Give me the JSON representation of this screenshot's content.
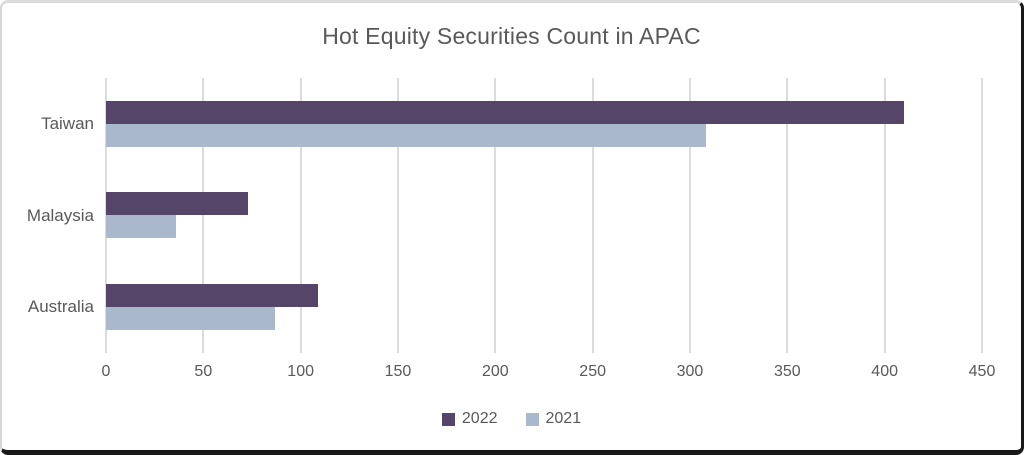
{
  "chart_data": {
    "type": "bar",
    "orientation": "horizontal",
    "title": "Hot Equity Securities Count in APAC",
    "categories": [
      "Taiwan",
      "Malaysia",
      "Australia"
    ],
    "series": [
      {
        "name": "2022",
        "color": "#544569",
        "values": [
          410,
          73,
          109
        ]
      },
      {
        "name": "2021",
        "color": "#a9b8ca",
        "values": [
          308,
          36,
          87
        ]
      }
    ],
    "xlim": [
      0,
      450
    ],
    "xticks": [
      0,
      50,
      100,
      150,
      200,
      250,
      300,
      350,
      400,
      450
    ],
    "grid": "vertical-gridlines-on",
    "legend_position": "bottom-center",
    "colors": {
      "axis_text": "#595959",
      "title_text": "#595959",
      "gridline": "#dcdcdc",
      "plot_background": "#ffffff"
    }
  }
}
